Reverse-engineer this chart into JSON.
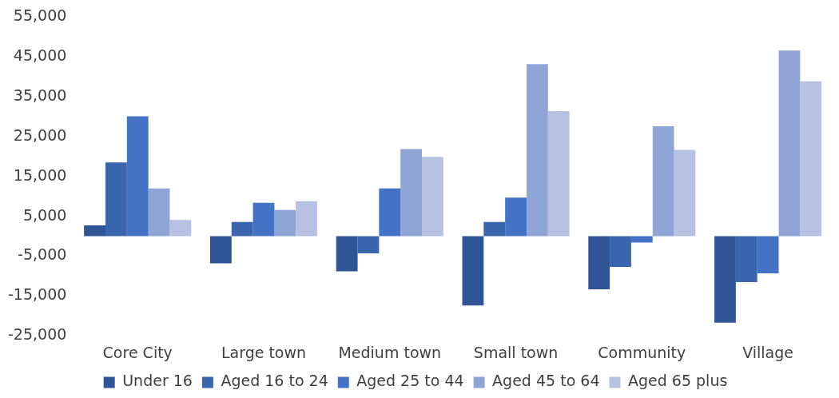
{
  "chart_data": {
    "type": "bar",
    "categories": [
      "Core City",
      "Large town",
      "Medium town",
      "Small town",
      "Community",
      "Village"
    ],
    "series": [
      {
        "name": "Under 16",
        "color": "#2f5597",
        "values": [
          2700,
          -6800,
          -8800,
          -17400,
          -13300,
          -21700
        ]
      },
      {
        "name": "Aged 16 to 24",
        "color": "#3a66ad",
        "values": [
          18500,
          3600,
          -4300,
          3600,
          -7700,
          -11500
        ]
      },
      {
        "name": "Aged 25 to 44",
        "color": "#4472c4",
        "values": [
          30100,
          8400,
          12000,
          9700,
          -1600,
          -9300
        ]
      },
      {
        "name": "Aged 45 to 64",
        "color": "#8fa5d6",
        "values": [
          12000,
          6600,
          21900,
          43200,
          27600,
          46600
        ]
      },
      {
        "name": "Aged 65 plus",
        "color": "#b7c2e3",
        "values": [
          4100,
          8800,
          19900,
          31400,
          21700,
          38900
        ]
      }
    ],
    "ylim": [
      -25000,
      55000
    ],
    "yticks": [
      {
        "value": -25000,
        "label": "-25,000"
      },
      {
        "value": -15000,
        "label": "-15,000"
      },
      {
        "value": -5000,
        "label": "-5,000"
      },
      {
        "value": 5000,
        "label": "5,000"
      },
      {
        "value": 15000,
        "label": "15,000"
      },
      {
        "value": 25000,
        "label": "25,000"
      },
      {
        "value": 35000,
        "label": "35,000"
      },
      {
        "value": 45000,
        "label": "45,000"
      },
      {
        "value": 55000,
        "label": "55,000"
      }
    ],
    "legend": "bottom"
  }
}
